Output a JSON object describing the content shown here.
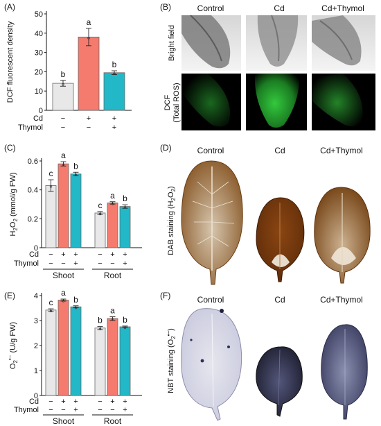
{
  "chart_data": [
    {
      "panel": "(A)",
      "type": "bar",
      "ylabel": "DCF fluorescent density",
      "ylim": [
        0,
        50
      ],
      "yticks": [
        0,
        10,
        20,
        30,
        40,
        50
      ],
      "categories": [
        "Control",
        "Cd",
        "Cd+Thymol"
      ],
      "values": [
        14,
        38,
        19.5
      ],
      "errors": [
        1.5,
        4.5,
        1.0
      ],
      "letters": [
        "b",
        "a",
        "b"
      ],
      "colors": [
        "#e8e8e8",
        "#f47b6e",
        "#22b8c8"
      ],
      "treatment_rows": [
        {
          "label": "Cd",
          "signs": [
            "−",
            "+",
            "+"
          ]
        },
        {
          "label": "Thymol",
          "signs": [
            "−",
            "−",
            "+"
          ]
        }
      ]
    },
    {
      "panel": "(C)",
      "type": "bar",
      "ylabel_parts": [
        "H",
        "2",
        "O",
        "2",
        " (mmol/g FW)"
      ],
      "ylim": [
        0,
        0.6
      ],
      "yticks": [
        0.0,
        0.2,
        0.4,
        0.6
      ],
      "groups": [
        {
          "name": "Shoot",
          "values": [
            0.43,
            0.58,
            0.51
          ],
          "errors": [
            0.04,
            0.015,
            0.012
          ],
          "letters": [
            "c",
            "a",
            "b"
          ]
        },
        {
          "name": "Root",
          "values": [
            0.24,
            0.31,
            0.285
          ],
          "errors": [
            0.01,
            0.008,
            0.012
          ],
          "letters": [
            "c",
            "a",
            "b"
          ]
        }
      ],
      "colors": [
        "#e8e8e8",
        "#f47b6e",
        "#22b8c8"
      ],
      "treatment_rows": [
        {
          "label": "Cd",
          "signs": [
            "−",
            "+",
            "+"
          ]
        },
        {
          "label": "Thymol",
          "signs": [
            "−",
            "−",
            "+"
          ]
        }
      ]
    },
    {
      "panel": "(E)",
      "type": "bar",
      "ylabel_parts": [
        "O",
        "2",
        "•−",
        " (U/g FW)"
      ],
      "ylim": [
        0,
        4
      ],
      "yticks": [
        0,
        1,
        2,
        3,
        4
      ],
      "groups": [
        {
          "name": "Shoot",
          "values": [
            3.42,
            3.82,
            3.55
          ],
          "errors": [
            0.05,
            0.04,
            0.04
          ],
          "letters": [
            "c",
            "a",
            "b"
          ]
        },
        {
          "name": "Root",
          "values": [
            2.7,
            3.08,
            2.75
          ],
          "errors": [
            0.06,
            0.07,
            0.03
          ],
          "letters": [
            "b",
            "a",
            "b"
          ]
        }
      ],
      "colors": [
        "#e8e8e8",
        "#f47b6e",
        "#22b8c8"
      ],
      "treatment_rows": [
        {
          "label": "Cd",
          "signs": [
            "−",
            "+",
            "+"
          ]
        },
        {
          "label": "Thymol",
          "signs": [
            "−",
            "−",
            "+"
          ]
        }
      ]
    }
  ],
  "panel_labels": {
    "a": "(A)",
    "b": "(B)",
    "c": "(C)",
    "d": "(D)",
    "e": "(E)",
    "f": "(F)"
  },
  "panel_b": {
    "columns": [
      "Control",
      "Cd",
      "Cd+Thymol"
    ],
    "row1_label": "Bright field",
    "row2_label_line1": "DCF",
    "row2_label_line2": "(Total ROS)",
    "fluorescence_color": "#1f9e2a"
  },
  "panel_d": {
    "columns": [
      "Control",
      "Cd",
      "Cd+Thymol"
    ],
    "ylabel_parts": [
      "DAB staining (H",
      "2",
      "O",
      "2",
      ")"
    ]
  },
  "panel_f": {
    "columns": [
      "Control",
      "Cd",
      "Cd+Thymol"
    ],
    "ylabel_parts": [
      "NBT staining (O",
      "2",
      "•−",
      ")"
    ]
  }
}
